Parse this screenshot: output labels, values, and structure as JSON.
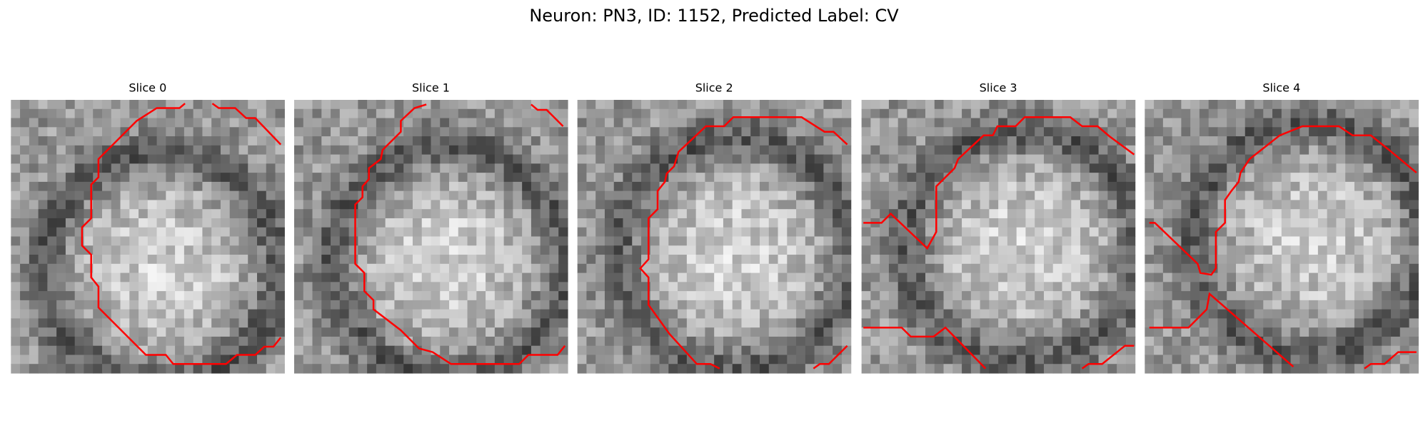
{
  "header": {
    "title": "Neuron: PN3, ID: 1152, Predicted Label: CV"
  },
  "panels": [
    {
      "title": "Slice 0"
    },
    {
      "title": "Slice 1"
    },
    {
      "title": "Slice 2"
    },
    {
      "title": "Slice 3"
    },
    {
      "title": "Slice 4"
    }
  ]
}
